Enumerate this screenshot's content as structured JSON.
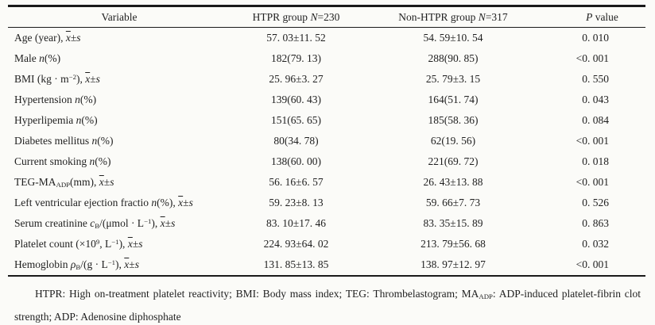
{
  "page": {
    "background": "#fbfbf8",
    "text_color": "#1f1f1f",
    "rule_color": "#1a1a1a"
  },
  "table": {
    "headers": [
      {
        "id": "variable",
        "label_html": "Variable"
      },
      {
        "id": "htpr_group",
        "label_html": "HTPR group <i>N</i>=230"
      },
      {
        "id": "non_htpr_group",
        "label_html": "Non-HTPR group <i>N</i>=317"
      },
      {
        "id": "p_value",
        "label_html": "<i>P</i> value"
      }
    ],
    "rows": [
      {
        "variable_html": "Age (year), <i class=\"ov\">x</i>±<i>s</i>",
        "htpr": "57. 03±11. 52",
        "non_htpr": "54. 59±10. 54",
        "p": "0. 010"
      },
      {
        "variable_html": "Male <i>n</i>(%)",
        "htpr": "182(79. 13)",
        "non_htpr": "288(90. 85)",
        "p": "<0. 001"
      },
      {
        "variable_html": "BMI (kg · m<sup>−2</sup>), <i class=\"ov\">x</i>±<i>s</i>",
        "htpr": "25. 96±3. 27",
        "non_htpr": "25. 79±3. 15",
        "p": "0. 550"
      },
      {
        "variable_html": "Hypertension <i>n</i>(%)",
        "htpr": "139(60. 43)",
        "non_htpr": "164(51. 74)",
        "p": "0. 043"
      },
      {
        "variable_html": "Hyperlipemia <i>n</i>(%)",
        "htpr": "151(65. 65)",
        "non_htpr": "185(58. 36)",
        "p": "0. 084"
      },
      {
        "variable_html": "Diabetes mellitus <i>n</i>(%)",
        "htpr": "80(34. 78)",
        "non_htpr": "62(19. 56)",
        "p": "<0. 001"
      },
      {
        "variable_html": "Current smoking <i>n</i>(%)",
        "htpr": "138(60. 00)",
        "non_htpr": "221(69. 72)",
        "p": "0. 018"
      },
      {
        "variable_html": "TEG-MA<sub>ADP</sub>(mm), <i class=\"ov\">x</i>±<i>s</i>",
        "htpr": "56. 16±6. 57",
        "non_htpr": "26. 43±13. 88",
        "p": "<0. 001"
      },
      {
        "variable_html": "Left ventricular ejection fractio <i>n</i>(%), <i class=\"ov\">x</i>±<i>s</i>",
        "htpr": "59. 23±8. 13",
        "non_htpr": "59. 66±7. 73",
        "p": "0. 526"
      },
      {
        "variable_html": "Serum creatinine <i>c</i><sub>B</sub>/(μmol · L<sup>−1</sup>), <i class=\"ov\">x</i>±<i>s</i>",
        "htpr": "83. 10±17. 46",
        "non_htpr": "83. 35±15. 89",
        "p": "0. 863"
      },
      {
        "variable_html": "Platelet count (×10<sup>9</sup>, L<sup>−1</sup>), <i class=\"ov\">x</i>±<i>s</i>",
        "htpr": "224. 93±64. 02",
        "non_htpr": "213. 79±56. 68",
        "p": "0. 032"
      },
      {
        "variable_html": "Hemoglobin <i>ρ</i><sub>B</sub>/(g · L<sup>−1</sup>), <i class=\"ov\">x</i>±<i>s</i>",
        "htpr": "131. 85±13. 85",
        "non_htpr": "138. 97±12. 97",
        "p": "<0. 001"
      }
    ]
  },
  "footnote_html": "HTPR: High on-treatment platelet reactivity; BMI: Body mass index; TEG: Thrombelastogram; MA<sub>ADP</sub>: ADP-induced platelet-fibrin clot strength; ADP: Adenosine diphosphate"
}
